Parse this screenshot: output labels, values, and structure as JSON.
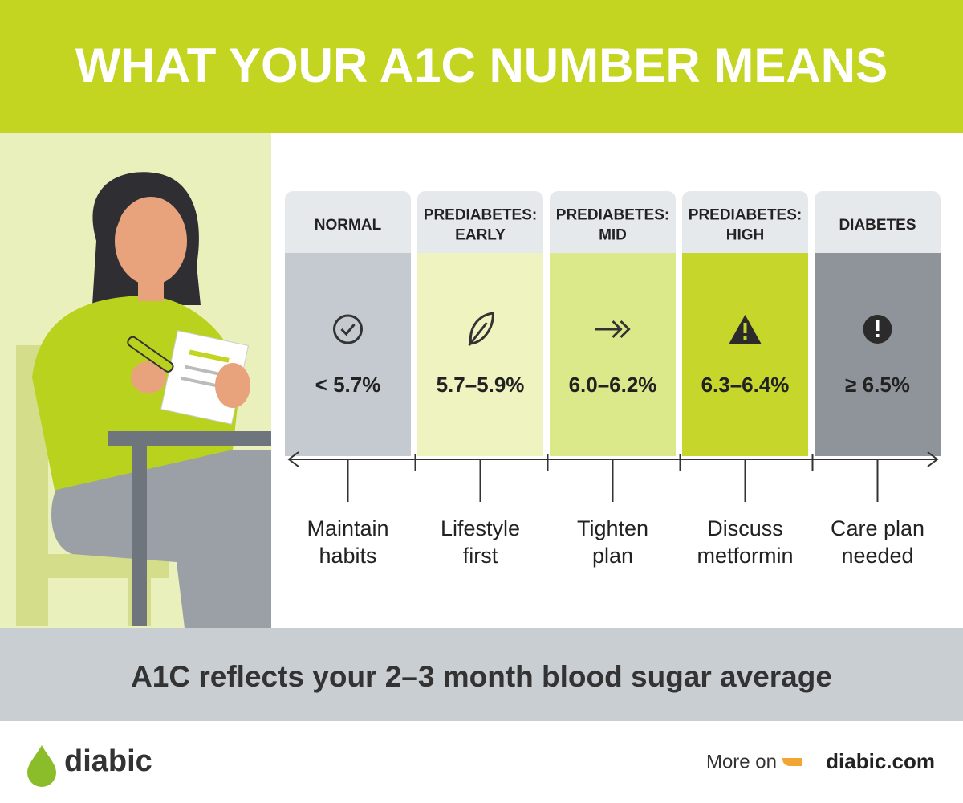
{
  "title": "WHAT YOUR A1C NUMBER MEANS",
  "stages": [
    {
      "label_lines": [
        "NORMAL"
      ],
      "range": "< 5.7%",
      "action_lines": [
        "Maintain",
        "habits"
      ]
    },
    {
      "label_lines": [
        "PREDIABETES:",
        "EARLY"
      ],
      "range": "5.7–5.9%",
      "action_lines": [
        "Lifestyle",
        "first"
      ]
    },
    {
      "label_lines": [
        "PREDIABETES:",
        "MID"
      ],
      "range": "6.0–6.2%",
      "action_lines": [
        "Tighten",
        "plan"
      ]
    },
    {
      "label_lines": [
        "PREDIABETES:",
        "HIGH"
      ],
      "range": "6.3–6.4%",
      "action_lines": [
        "Discuss",
        "metformin"
      ]
    },
    {
      "label_lines": [
        "DIABETES"
      ],
      "range": "≥ 6.5%",
      "action_lines": [
        "Care plan",
        "needed"
      ]
    }
  ],
  "note": "A1C reflects your 2–3 month blood sugar average",
  "brand": "diabic",
  "link_prefix": "More on",
  "link": "diabic.com"
}
